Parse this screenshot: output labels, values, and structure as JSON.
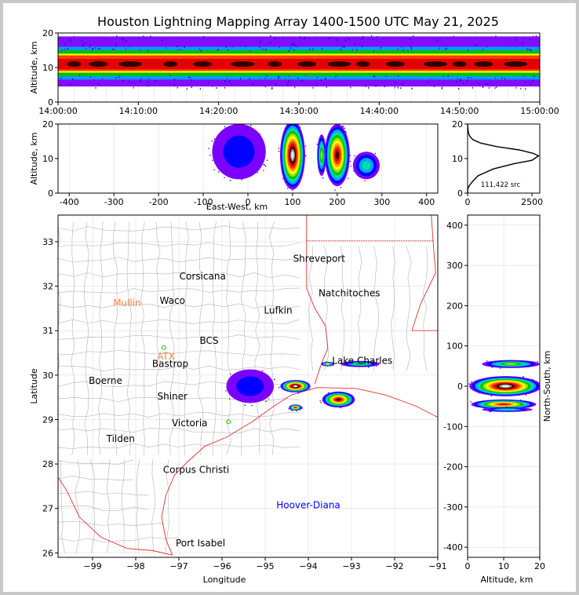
{
  "figure_title": "Houston Lightning Mapping Array 1400-1500 UTC May 21, 2025",
  "colors": {
    "density_scale": [
      "#7b00ff",
      "#0000ff",
      "#00a2ff",
      "#00e0a0",
      "#00c000",
      "#a0e000",
      "#ffff00",
      "#ffa000",
      "#ff3000",
      "#e00000",
      "#300000",
      "#9a9a9a",
      "#e8e8e8"
    ],
    "coastline": "#e03030",
    "county_lines": "#b4b4b4",
    "grid": "#d8d8d8",
    "city_label": "#000000",
    "station_label": "#ff8040",
    "station_marker": "#20c000",
    "site_label": "#0000ff"
  },
  "chart_data": [
    {
      "id": "time_height",
      "type": "heatmap",
      "title": "",
      "xlabel": "",
      "ylabel": "Altitude, km",
      "x_ticks": [
        "14:00:00",
        "14:10:00",
        "14:20:00",
        "14:30:00",
        "14:40:00",
        "14:50:00",
        "15:00:00"
      ],
      "y_ticks": [
        0,
        10,
        20
      ],
      "xlim": [
        "14:00:00",
        "15:00:00"
      ],
      "ylim": [
        0,
        20
      ],
      "bands": [
        {
          "altitude_km": [
            4.5,
            19
          ],
          "level": 0
        },
        {
          "altitude_km": [
            6.5,
            16
          ],
          "level": 2
        },
        {
          "altitude_km": [
            7.5,
            15
          ],
          "level": 4
        },
        {
          "altitude_km": [
            8.5,
            14
          ],
          "level": 6
        },
        {
          "altitude_km": [
            9,
            13.5
          ],
          "level": 8
        },
        {
          "altitude_km": [
            9.5,
            12.5
          ],
          "level": 9
        }
      ],
      "peaks_minutes": [
        2,
        5,
        9,
        14,
        18,
        23,
        27,
        31,
        35,
        38,
        42,
        47,
        50,
        53,
        57
      ]
    },
    {
      "id": "ew_altitude",
      "type": "heatmap",
      "xlabel": "East-West, km",
      "ylabel": "Altitude, km",
      "x_ticks": [
        -400,
        -300,
        -200,
        -100,
        0,
        100,
        200,
        300,
        400
      ],
      "y_ticks": [
        0,
        10,
        20
      ],
      "xlim": [
        -425,
        425
      ],
      "ylim": [
        0,
        20
      ],
      "cells": [
        {
          "x": -20,
          "y": 12,
          "rx": 60,
          "ry": 8,
          "peak": 1
        },
        {
          "x": 100,
          "y": 11,
          "rx": 28,
          "ry": 10,
          "peak": 12
        },
        {
          "x": 165,
          "y": 11,
          "rx": 10,
          "ry": 6,
          "peak": 5
        },
        {
          "x": 200,
          "y": 11,
          "rx": 28,
          "ry": 9,
          "peak": 10
        },
        {
          "x": 265,
          "y": 8,
          "rx": 30,
          "ry": 4,
          "peak": 3
        }
      ]
    },
    {
      "id": "altitude_histogram",
      "type": "line",
      "annotation": "111,422 src",
      "x_ticks": [
        0,
        2500
      ],
      "y_ticks": [
        0,
        10,
        20
      ],
      "xlim": [
        0,
        2800
      ],
      "ylim": [
        0,
        20
      ],
      "series": [
        {
          "x": [
            0,
            0,
            50,
            150,
            400,
            1000,
            1800,
            2500,
            2750,
            2550,
            2000,
            1100,
            500,
            200,
            80,
            30,
            10,
            0
          ],
          "y": [
            0,
            1,
            2,
            3,
            5,
            7,
            8.5,
            9.5,
            10.8,
            11.5,
            12.5,
            13.5,
            14.5,
            15.5,
            16.5,
            17.5,
            19,
            20
          ]
        }
      ]
    },
    {
      "id": "plan_view",
      "type": "heatmap",
      "xlabel": "Longitude",
      "ylabel": "Latitude",
      "x_ticks": [
        -99,
        -98,
        -97,
        -96,
        -95,
        -94,
        -93,
        -92,
        -91
      ],
      "y_ticks": [
        26,
        27,
        28,
        29,
        30,
        31,
        32,
        33
      ],
      "xlim": [
        -99.8,
        -91
      ],
      "ylim": [
        25.9,
        33.6
      ],
      "cities": [
        {
          "name": "Shreveport",
          "lon": -93.75,
          "lat": 32.55
        },
        {
          "name": "Corsicana",
          "lon": -96.45,
          "lat": 32.15
        },
        {
          "name": "Natchitoches",
          "lon": -93.05,
          "lat": 31.77
        },
        {
          "name": "Waco",
          "lon": -97.15,
          "lat": 31.6
        },
        {
          "name": "Lufkin",
          "lon": -94.7,
          "lat": 31.38
        },
        {
          "name": "BCS",
          "lon": -96.3,
          "lat": 30.7
        },
        {
          "name": "Bastrop",
          "lon": -97.2,
          "lat": 30.18
        },
        {
          "name": "Lake Charles",
          "lon": -92.75,
          "lat": 30.25
        },
        {
          "name": "Boerne",
          "lon": -98.7,
          "lat": 29.8
        },
        {
          "name": "Shiner",
          "lon": -97.15,
          "lat": 29.45
        },
        {
          "name": "Victoria",
          "lon": -96.75,
          "lat": 28.85
        },
        {
          "name": "Tilden",
          "lon": -98.35,
          "lat": 28.5
        },
        {
          "name": "Corpus Christi",
          "lon": -96.6,
          "lat": 27.8
        },
        {
          "name": "Port Isabel",
          "lon": -96.5,
          "lat": 26.15
        }
      ],
      "stations": [
        {
          "name": "Mullin",
          "lon": -98.2,
          "lat": 31.55
        },
        {
          "name": "ATX",
          "lon": -97.3,
          "lat": 30.35
        }
      ],
      "sites": [
        {
          "name": "Hoover-Diana",
          "lon": -94.0,
          "lat": 27.0
        }
      ],
      "cells": [
        {
          "lon": -95.35,
          "lat": 29.75,
          "rx": 0.55,
          "ry": 0.38,
          "peak": 1
        },
        {
          "lon": -94.3,
          "lat": 29.75,
          "rx": 0.35,
          "ry": 0.14,
          "peak": 12
        },
        {
          "lon": -94.3,
          "lat": 29.27,
          "rx": 0.15,
          "ry": 0.07,
          "peak": 9
        },
        {
          "lon": -93.3,
          "lat": 29.45,
          "rx": 0.38,
          "ry": 0.18,
          "peak": 10
        },
        {
          "lon": -92.8,
          "lat": 30.25,
          "rx": 0.45,
          "ry": 0.07,
          "peak": 4
        },
        {
          "lon": -93.55,
          "lat": 30.25,
          "rx": 0.15,
          "ry": 0.05,
          "peak": 6
        }
      ]
    },
    {
      "id": "ns_altitude",
      "type": "heatmap",
      "xlabel": "Altitude, km",
      "ylabel": "North-South, km",
      "x_ticks": [
        0,
        10,
        20
      ],
      "y_ticks": [
        -400,
        -300,
        -200,
        -100,
        0,
        100,
        200,
        300,
        400
      ],
      "xlim": [
        0,
        20
      ],
      "ylim": [
        -425,
        425
      ],
      "cells": [
        {
          "x": 12,
          "y": 55,
          "rx": 8,
          "ry": 10,
          "peak": 5
        },
        {
          "x": 10.5,
          "y": 0,
          "rx": 10,
          "ry": 25,
          "peak": 12
        },
        {
          "x": 10,
          "y": -45,
          "rx": 9,
          "ry": 12,
          "peak": 9
        },
        {
          "x": 11,
          "y": -58,
          "rx": 7,
          "ry": 6,
          "peak": 3
        }
      ]
    }
  ]
}
